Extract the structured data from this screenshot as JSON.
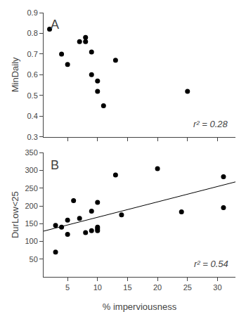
{
  "chart_data": [
    {
      "type": "scatter",
      "label": "A",
      "annotation": "r² = 0.28",
      "x": [
        2,
        4,
        5,
        7,
        8,
        8,
        9,
        9,
        10,
        10,
        11,
        13,
        25
      ],
      "y": [
        0.82,
        0.7,
        0.65,
        0.76,
        0.76,
        0.78,
        0.6,
        0.71,
        0.57,
        0.52,
        0.45,
        0.67,
        0.52
      ],
      "y_label": "MinDaily",
      "xlim": [
        1,
        33
      ],
      "xticks": [
        5,
        10,
        15,
        20,
        25,
        30
      ],
      "ylim": [
        0.3,
        0.9
      ],
      "yticks": [
        0.3,
        0.4,
        0.5,
        0.6,
        0.7,
        0.8,
        0.9
      ],
      "color": "black",
      "grid": false,
      "tick_labels": "y"
    },
    {
      "type": "scatter",
      "label": "B",
      "annotation": "r² = 0.54",
      "x": [
        3,
        3,
        4,
        5,
        5,
        6,
        7,
        8,
        9,
        9,
        10,
        10,
        10,
        10,
        13,
        14,
        20,
        24,
        31,
        31
      ],
      "y": [
        70,
        145,
        140,
        120,
        160,
        215,
        165,
        125,
        130,
        185,
        140,
        135,
        130,
        210,
        287,
        175,
        305,
        183,
        195,
        282
      ],
      "y_label": "DurLow<25",
      "x_label": "% imperviousness",
      "xlim": [
        1,
        33
      ],
      "xticks": [
        5,
        10,
        15,
        20,
        25,
        30
      ],
      "ylim": [
        0,
        350
      ],
      "yticks": [
        50,
        100,
        150,
        200,
        250,
        300,
        350
      ],
      "fit_line": {
        "x": [
          1,
          33
        ],
        "y": [
          128.86,
          267.69
        ],
        "color": "black"
      },
      "color": "black",
      "grid": false
    }
  ]
}
